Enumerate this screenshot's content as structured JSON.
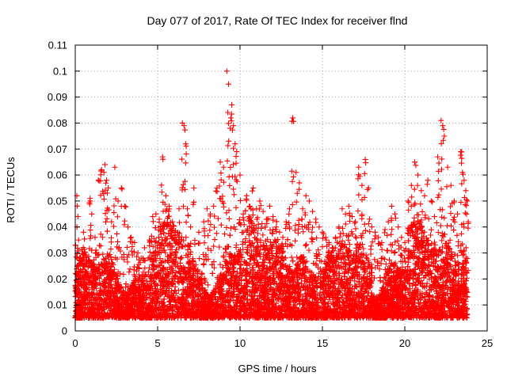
{
  "chart_data": {
    "type": "scatter",
    "title": "Day 077 of 2017, Rate Of TEC Index for receiver flnd",
    "xlabel": "GPS time / hours",
    "ylabel": "ROTI / TECUs",
    "xlim": [
      0,
      25
    ],
    "ylim": [
      0,
      0.11
    ],
    "xticks": [
      0,
      5,
      10,
      15,
      20,
      25
    ],
    "xtick_labels": [
      "0",
      "5",
      "10",
      "15",
      "20",
      "25"
    ],
    "yticks": [
      0,
      0.01,
      0.02,
      0.03,
      0.04,
      0.05,
      0.06,
      0.07,
      0.08,
      0.09,
      0.1,
      0.11
    ],
    "ytick_labels": [
      "0",
      "0.01",
      "0.02",
      "0.03",
      "0.04",
      "0.05",
      "0.06",
      "0.07",
      "0.08",
      "0.09",
      "0.1",
      "0.11"
    ],
    "grid": true,
    "marker": "+",
    "color": "#ff0000",
    "series": [
      {
        "name": "ROTI",
        "points": [
          [
            0.1,
            0.052
          ],
          [
            0.2,
            0.035
          ],
          [
            0.3,
            0.028
          ],
          [
            0.5,
            0.038
          ],
          [
            0.7,
            0.022
          ],
          [
            0.9,
            0.051
          ],
          [
            1.0,
            0.045
          ],
          [
            1.2,
            0.036
          ],
          [
            1.4,
            0.058
          ],
          [
            1.6,
            0.062
          ],
          [
            1.8,
            0.064
          ],
          [
            1.9,
            0.058
          ],
          [
            2.0,
            0.055
          ],
          [
            2.2,
            0.042
          ],
          [
            2.4,
            0.063
          ],
          [
            2.6,
            0.05
          ],
          [
            2.8,
            0.055
          ],
          [
            3.0,
            0.048
          ],
          [
            3.2,
            0.04
          ],
          [
            3.4,
            0.036
          ],
          [
            3.6,
            0.034
          ],
          [
            3.8,
            0.03
          ],
          [
            4.0,
            0.028
          ],
          [
            4.2,
            0.032
          ],
          [
            4.5,
            0.035
          ],
          [
            4.7,
            0.044
          ],
          [
            4.9,
            0.045
          ],
          [
            5.1,
            0.043
          ],
          [
            5.3,
            0.067
          ],
          [
            5.5,
            0.052
          ],
          [
            5.7,
            0.048
          ],
          [
            5.9,
            0.042
          ],
          [
            6.1,
            0.035
          ],
          [
            6.3,
            0.047
          ],
          [
            6.5,
            0.08
          ],
          [
            6.6,
            0.079
          ],
          [
            6.7,
            0.072
          ],
          [
            6.8,
            0.047
          ],
          [
            7.0,
            0.04
          ],
          [
            7.2,
            0.055
          ],
          [
            7.5,
            0.038
          ],
          [
            7.8,
            0.042
          ],
          [
            8.0,
            0.047
          ],
          [
            8.2,
            0.045
          ],
          [
            8.4,
            0.048
          ],
          [
            8.6,
            0.055
          ],
          [
            8.8,
            0.065
          ],
          [
            9.0,
            0.063
          ],
          [
            9.2,
            0.1
          ],
          [
            9.3,
            0.095
          ],
          [
            9.4,
            0.078
          ],
          [
            9.5,
            0.087
          ],
          [
            9.6,
            0.079
          ],
          [
            9.7,
            0.072
          ],
          [
            9.8,
            0.069
          ],
          [
            10.0,
            0.06
          ],
          [
            10.2,
            0.045
          ],
          [
            10.4,
            0.052
          ],
          [
            10.6,
            0.048
          ],
          [
            10.8,
            0.055
          ],
          [
            11.0,
            0.047
          ],
          [
            11.2,
            0.05
          ],
          [
            11.4,
            0.046
          ],
          [
            11.6,
            0.043
          ],
          [
            11.8,
            0.048
          ],
          [
            12.0,
            0.044
          ],
          [
            12.2,
            0.04
          ],
          [
            12.4,
            0.038
          ],
          [
            12.6,
            0.036
          ],
          [
            12.8,
            0.042
          ],
          [
            13.0,
            0.047
          ],
          [
            13.2,
            0.082
          ],
          [
            13.4,
            0.061
          ],
          [
            13.6,
            0.057
          ],
          [
            13.8,
            0.047
          ],
          [
            14.0,
            0.052
          ],
          [
            14.2,
            0.05
          ],
          [
            14.4,
            0.046
          ],
          [
            14.6,
            0.043
          ],
          [
            14.8,
            0.04
          ],
          [
            15.0,
            0.038
          ],
          [
            15.2,
            0.036
          ],
          [
            15.4,
            0.034
          ],
          [
            15.6,
            0.032
          ],
          [
            15.8,
            0.036
          ],
          [
            16.0,
            0.04
          ],
          [
            16.2,
            0.047
          ],
          [
            16.4,
            0.045
          ],
          [
            16.6,
            0.048
          ],
          [
            16.8,
            0.044
          ],
          [
            17.0,
            0.042
          ],
          [
            17.2,
            0.063
          ],
          [
            17.4,
            0.056
          ],
          [
            17.6,
            0.066
          ],
          [
            17.8,
            0.055
          ],
          [
            18.0,
            0.04
          ],
          [
            18.2,
            0.038
          ],
          [
            18.4,
            0.036
          ],
          [
            18.6,
            0.034
          ],
          [
            18.8,
            0.039
          ],
          [
            19.0,
            0.042
          ],
          [
            19.2,
            0.048
          ],
          [
            19.4,
            0.045
          ],
          [
            19.6,
            0.04
          ],
          [
            19.8,
            0.036
          ],
          [
            20.0,
            0.034
          ],
          [
            20.2,
            0.05
          ],
          [
            20.4,
            0.056
          ],
          [
            20.6,
            0.065
          ],
          [
            20.8,
            0.06
          ],
          [
            21.0,
            0.054
          ],
          [
            21.2,
            0.052
          ],
          [
            21.4,
            0.058
          ],
          [
            21.6,
            0.05
          ],
          [
            21.8,
            0.044
          ],
          [
            22.0,
            0.067
          ],
          [
            22.2,
            0.081
          ],
          [
            22.3,
            0.079
          ],
          [
            22.4,
            0.075
          ],
          [
            22.6,
            0.063
          ],
          [
            22.8,
            0.056
          ],
          [
            23.0,
            0.05
          ],
          [
            23.2,
            0.045
          ],
          [
            23.4,
            0.069
          ],
          [
            23.5,
            0.061
          ],
          [
            23.6,
            0.058
          ],
          [
            23.7,
            0.054
          ],
          [
            23.8,
            0.05
          ]
        ]
      }
    ],
    "noise_band": {
      "description": "dense cloud of ROTI values across the full day",
      "x_range": [
        0.0,
        23.8
      ],
      "y_floor": 0.001,
      "y_typical_max": 0.03,
      "count": 9000
    }
  }
}
